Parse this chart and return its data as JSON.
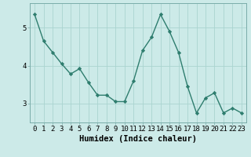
{
  "x": [
    0,
    1,
    2,
    3,
    4,
    5,
    6,
    7,
    8,
    9,
    10,
    11,
    12,
    13,
    14,
    15,
    16,
    17,
    18,
    19,
    20,
    21,
    22,
    23
  ],
  "y": [
    5.35,
    4.65,
    4.35,
    4.05,
    3.78,
    3.92,
    3.55,
    3.22,
    3.22,
    3.05,
    3.05,
    3.6,
    4.4,
    4.75,
    5.35,
    4.9,
    4.35,
    3.45,
    2.75,
    3.15,
    3.28,
    2.75,
    2.88,
    2.75
  ],
  "line_color": "#2e7d6e",
  "marker": "D",
  "marker_size": 2.2,
  "bg_color": "#cceae8",
  "grid_color": "#aad4d0",
  "xlabel": "Humidex (Indice chaleur)",
  "xlim": [
    -0.5,
    23.5
  ],
  "ylim": [
    2.5,
    5.65
  ],
  "yticks": [
    3,
    4,
    5
  ],
  "xticks": [
    0,
    1,
    2,
    3,
    4,
    5,
    6,
    7,
    8,
    9,
    10,
    11,
    12,
    13,
    14,
    15,
    16,
    17,
    18,
    19,
    20,
    21,
    22,
    23
  ],
  "xtick_labels": [
    "0",
    "1",
    "2",
    "3",
    "4",
    "5",
    "6",
    "7",
    "8",
    "9",
    "10",
    "11",
    "12",
    "13",
    "14",
    "15",
    "16",
    "17",
    "18",
    "19",
    "20",
    "21",
    "22",
    "23"
  ],
  "tick_fontsize": 6.5,
  "xlabel_fontsize": 7.5,
  "line_width": 1.0,
  "spine_color": "#7aadaa"
}
